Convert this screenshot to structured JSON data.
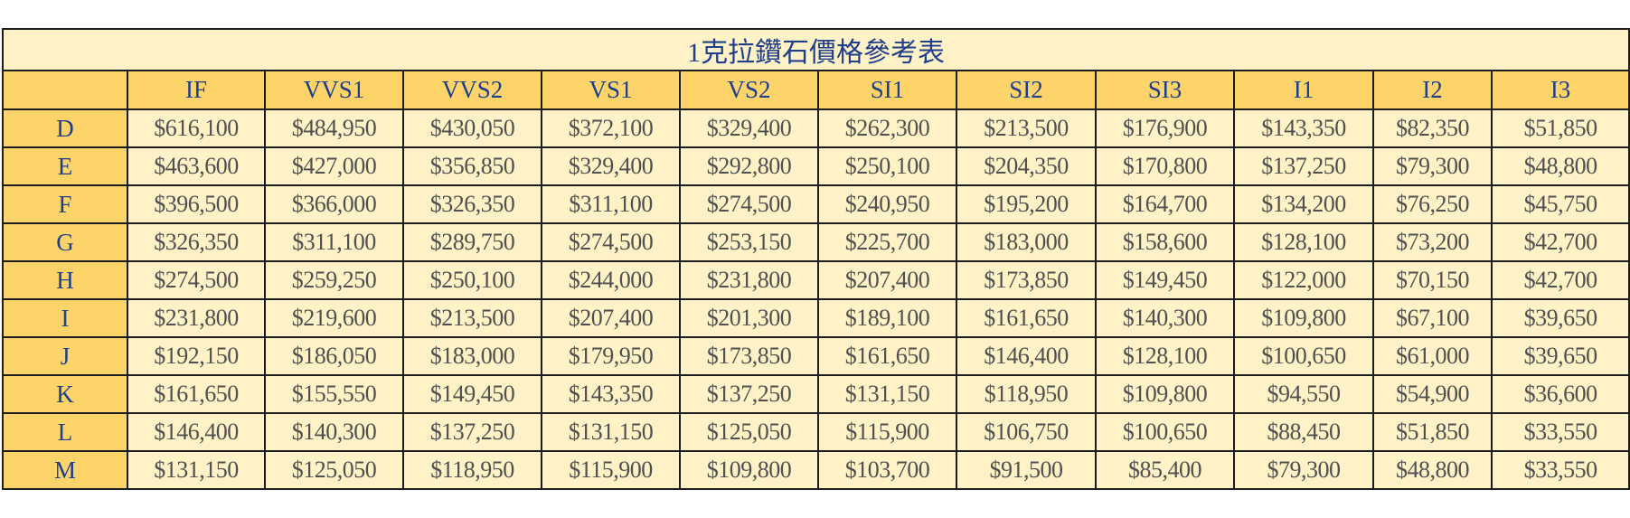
{
  "table": {
    "title": "1克拉鑽石價格參考表",
    "corner": "",
    "columns": [
      "IF",
      "VVS1",
      "VVS2",
      "VS1",
      "VS2",
      "SI1",
      "SI2",
      "SI3",
      "I1",
      "I2",
      "I3"
    ],
    "rows": [
      {
        "color": "D",
        "prices": [
          "$616,100",
          "$484,950",
          "$430,050",
          "$372,100",
          "$329,400",
          "$262,300",
          "$213,500",
          "$176,900",
          "$143,350",
          "$82,350",
          "$51,850"
        ]
      },
      {
        "color": "E",
        "prices": [
          "$463,600",
          "$427,000",
          "$356,850",
          "$329,400",
          "$292,800",
          "$250,100",
          "$204,350",
          "$170,800",
          "$137,250",
          "$79,300",
          "$48,800"
        ]
      },
      {
        "color": "F",
        "prices": [
          "$396,500",
          "$366,000",
          "$326,350",
          "$311,100",
          "$274,500",
          "$240,950",
          "$195,200",
          "$164,700",
          "$134,200",
          "$76,250",
          "$45,750"
        ]
      },
      {
        "color": "G",
        "prices": [
          "$326,350",
          "$311,100",
          "$289,750",
          "$274,500",
          "$253,150",
          "$225,700",
          "$183,000",
          "$158,600",
          "$128,100",
          "$73,200",
          "$42,700"
        ]
      },
      {
        "color": "H",
        "prices": [
          "$274,500",
          "$259,250",
          "$250,100",
          "$244,000",
          "$231,800",
          "$207,400",
          "$173,850",
          "$149,450",
          "$122,000",
          "$70,150",
          "$42,700"
        ]
      },
      {
        "color": "I",
        "prices": [
          "$231,800",
          "$219,600",
          "$213,500",
          "$207,400",
          "$201,300",
          "$189,100",
          "$161,650",
          "$140,300",
          "$109,800",
          "$67,100",
          "$39,650"
        ]
      },
      {
        "color": "J",
        "prices": [
          "$192,150",
          "$186,050",
          "$183,000",
          "$179,950",
          "$173,850",
          "$161,650",
          "$146,400",
          "$128,100",
          "$100,650",
          "$61,000",
          "$39,650"
        ]
      },
      {
        "color": "K",
        "prices": [
          "$161,650",
          "$155,550",
          "$149,450",
          "$143,350",
          "$137,250",
          "$131,150",
          "$118,950",
          "$109,800",
          "$94,550",
          "$54,900",
          "$36,600"
        ]
      },
      {
        "color": "L",
        "prices": [
          "$146,400",
          "$140,300",
          "$137,250",
          "$131,150",
          "$125,050",
          "$115,900",
          "$106,750",
          "$100,650",
          "$88,450",
          "$51,850",
          "$33,550"
        ]
      },
      {
        "color": "M",
        "prices": [
          "$131,150",
          "$125,050",
          "$118,950",
          "$115,900",
          "$109,800",
          "$103,700",
          "$91,500",
          "$85,400",
          "$79,300",
          "$48,800",
          "$33,550"
        ]
      }
    ]
  },
  "colors": {
    "title_bg": "#fff2c6",
    "header_bg": "#fdd46a",
    "cell_bg": "#fff2c6",
    "header_text": "#1f3f8c",
    "cell_text": "#505050",
    "border": "#1c1c1c"
  }
}
